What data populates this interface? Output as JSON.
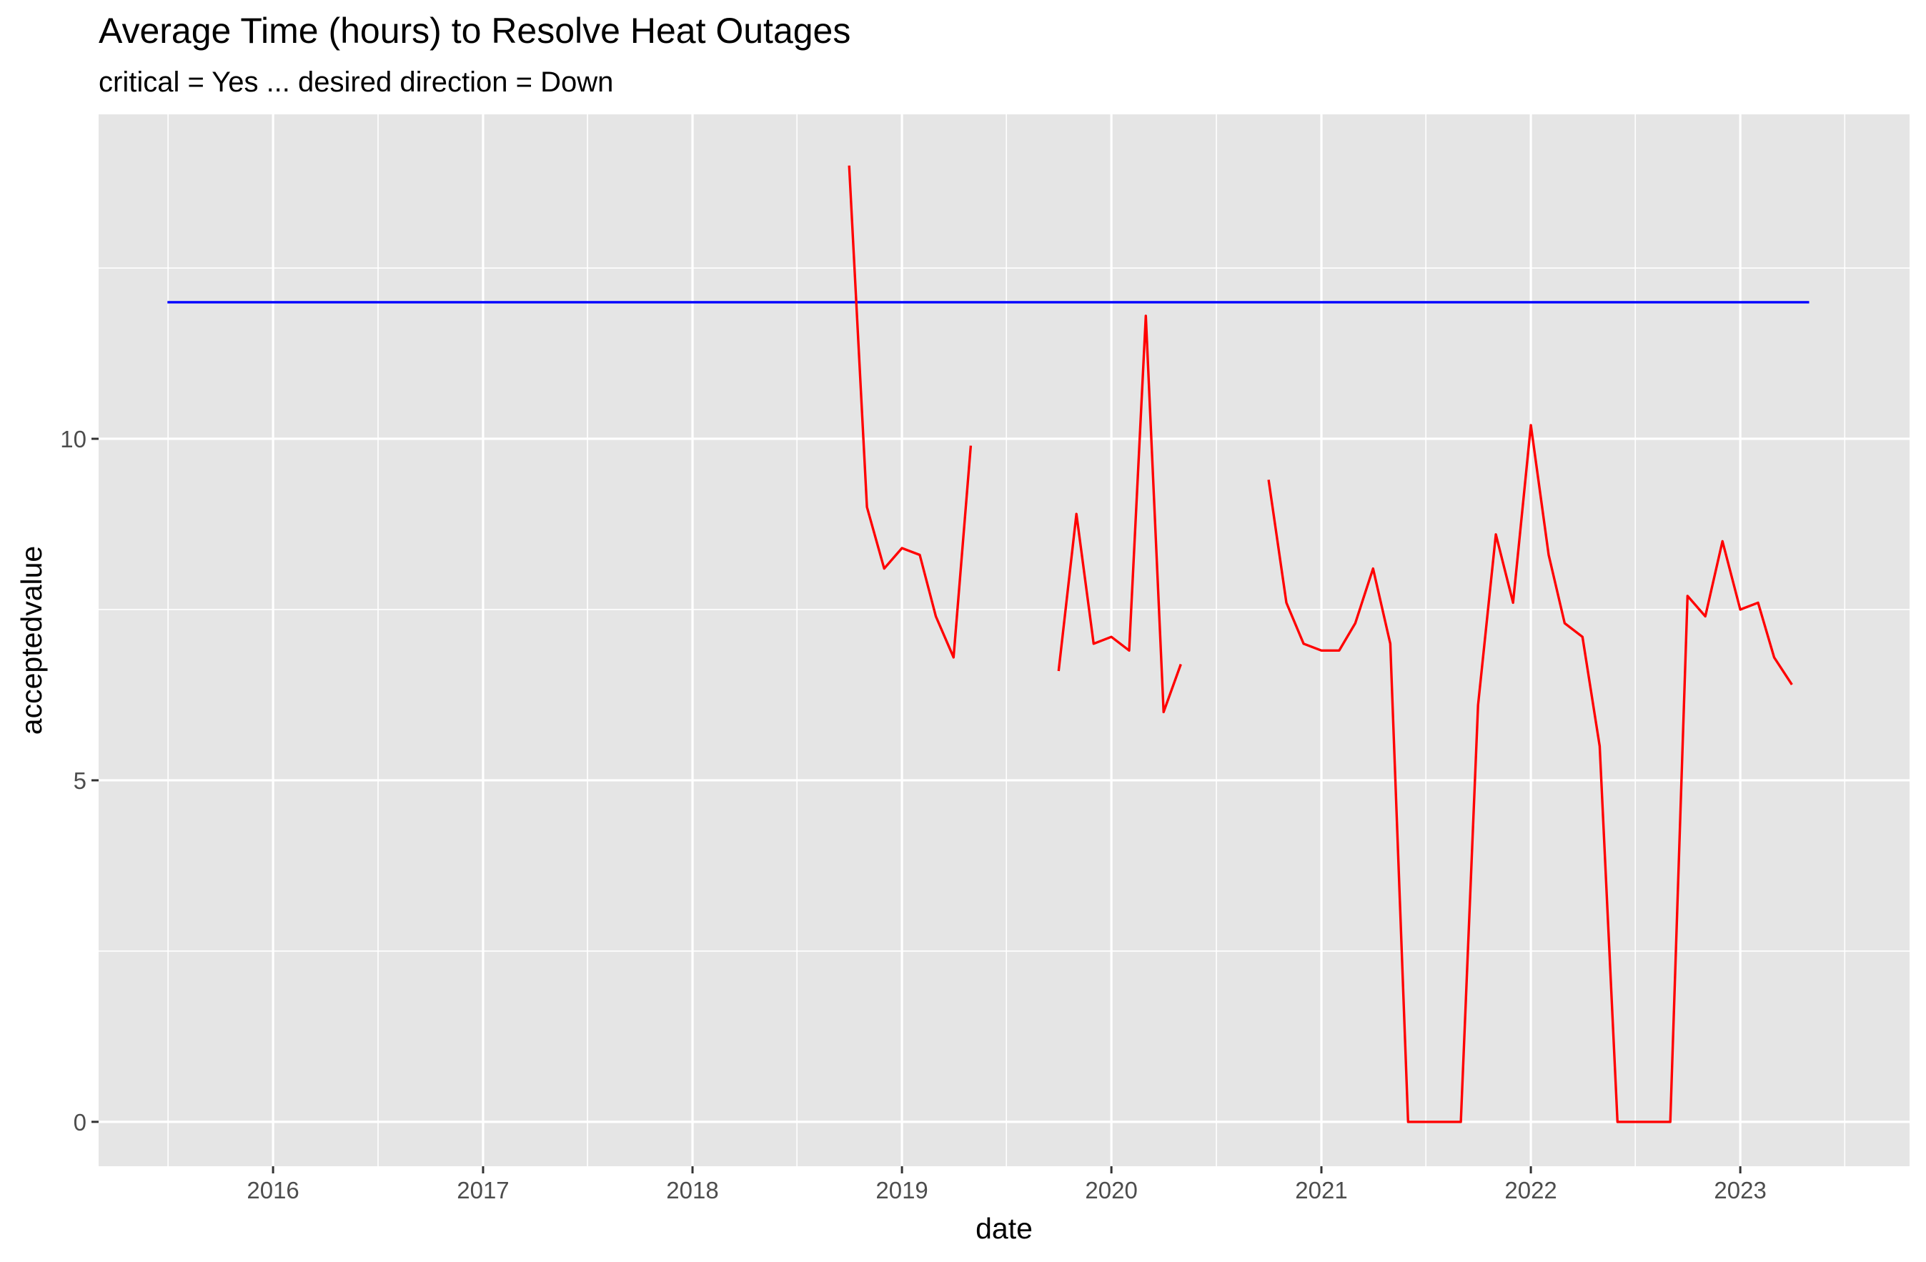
{
  "chart_data": {
    "type": "line",
    "title": "Average Time (hours) to Resolve Heat Outages",
    "subtitle": "critical = Yes ... desired direction = Down",
    "xlabel": "date",
    "ylabel": "acceptedvalue",
    "x_tick_labels": [
      "2016",
      "2017",
      "2018",
      "2019",
      "2020",
      "2021",
      "2022",
      "2023"
    ],
    "y_tick_labels": [
      "0",
      "5",
      "10"
    ],
    "xlim": [
      "2015-03-03",
      "2023-10-23"
    ],
    "ylim": [
      -0.65,
      14.75
    ],
    "grid": true,
    "background": "#e5e5e5",
    "series": [
      {
        "color": "#0000ff",
        "segments": [
          [
            [
              "2015-07-01",
              12.0
            ],
            [
              "2023-05-01",
              12.0
            ]
          ]
        ]
      },
      {
        "color": "#ff0000",
        "segments": [
          [
            [
              "2018-10-01",
              14.0
            ],
            [
              "2018-11-01",
              9.0
            ],
            [
              "2018-12-01",
              8.1
            ],
            [
              "2019-01-01",
              8.4
            ],
            [
              "2019-02-01",
              8.3
            ],
            [
              "2019-03-01",
              7.4
            ],
            [
              "2019-04-01",
              6.8
            ],
            [
              "2019-05-01",
              9.9
            ]
          ],
          [
            [
              "2019-10-01",
              6.6
            ],
            [
              "2019-11-01",
              8.9
            ],
            [
              "2019-12-01",
              7.0
            ],
            [
              "2020-01-01",
              7.1
            ],
            [
              "2020-02-01",
              6.9
            ],
            [
              "2020-03-01",
              11.8
            ],
            [
              "2020-04-01",
              6.0
            ],
            [
              "2020-05-01",
              6.7
            ]
          ],
          [
            [
              "2020-10-01",
              9.4
            ],
            [
              "2020-11-01",
              7.6
            ],
            [
              "2020-12-01",
              7.0
            ],
            [
              "2021-01-01",
              6.9
            ],
            [
              "2021-02-01",
              6.9
            ],
            [
              "2021-03-01",
              7.3
            ],
            [
              "2021-04-01",
              8.1
            ],
            [
              "2021-05-01",
              7.0
            ],
            [
              "2021-06-01",
              0.0
            ],
            [
              "2021-07-01",
              0.0
            ],
            [
              "2021-08-01",
              0.0
            ],
            [
              "2021-09-01",
              0.0
            ],
            [
              "2021-10-01",
              6.1
            ],
            [
              "2021-11-01",
              8.6
            ],
            [
              "2021-12-01",
              7.6
            ],
            [
              "2022-01-01",
              10.2
            ],
            [
              "2022-02-01",
              8.3
            ],
            [
              "2022-03-01",
              7.3
            ],
            [
              "2022-04-01",
              7.1
            ],
            [
              "2022-05-01",
              5.5
            ],
            [
              "2022-06-01",
              0.0
            ],
            [
              "2022-07-01",
              0.0
            ],
            [
              "2022-08-01",
              0.0
            ],
            [
              "2022-09-01",
              0.0
            ],
            [
              "2022-10-01",
              7.7
            ],
            [
              "2022-11-01",
              7.4
            ],
            [
              "2022-12-01",
              8.5
            ],
            [
              "2023-01-01",
              7.5
            ],
            [
              "2023-02-01",
              7.6
            ],
            [
              "2023-03-01",
              6.8
            ],
            [
              "2023-04-01",
              6.4
            ]
          ]
        ]
      }
    ]
  }
}
